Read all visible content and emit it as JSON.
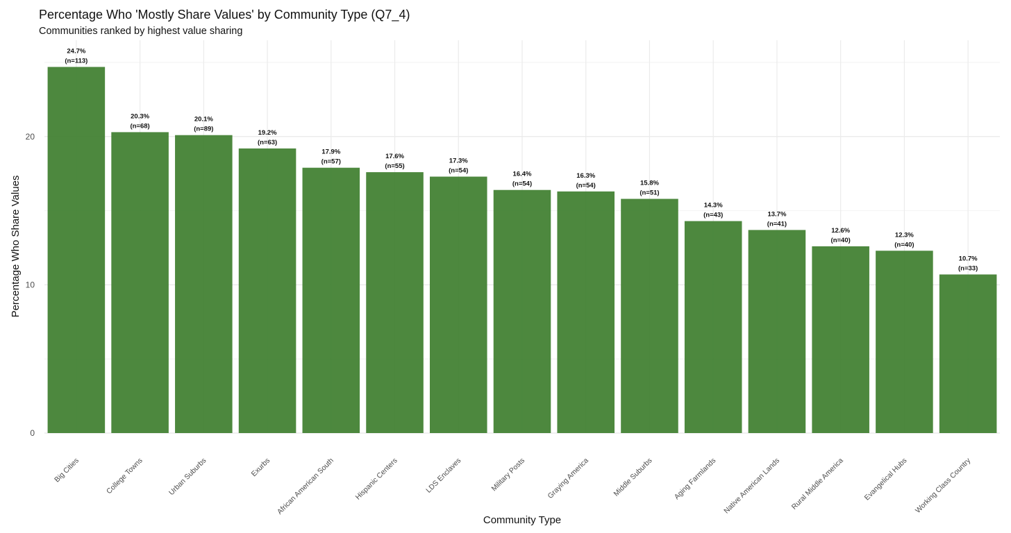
{
  "chart_data": {
    "type": "bar",
    "title": "Percentage Who 'Mostly Share Values' by Community Type (Q7_4)",
    "subtitle": "Communities ranked by highest value sharing",
    "xlabel": "Community Type",
    "ylabel": "Percentage Who Share Values",
    "ylim": [
      0,
      26.5
    ],
    "yticks": [
      0,
      10,
      20
    ],
    "yticks_labels": [
      "0",
      "10",
      "20"
    ],
    "grid": true,
    "bar_color": "#3f7f2f",
    "categories": [
      "Big Cities",
      "College Towns",
      "Urban Suburbs",
      "Exurbs",
      "African American South",
      "Hispanic Centers",
      "LDS Enclaves",
      "Military Posts",
      "Graying America",
      "Middle Suburbs",
      "Aging Farmlands",
      "Native American Lands",
      "Rural Middle America",
      "Evangelical Hubs",
      "Working Class Country"
    ],
    "values": [
      24.7,
      20.3,
      20.1,
      19.2,
      17.9,
      17.6,
      17.3,
      16.4,
      16.3,
      15.8,
      14.3,
      13.7,
      12.6,
      12.3,
      10.7
    ],
    "value_labels": [
      "24.7%",
      "20.3%",
      "20.1%",
      "19.2%",
      "17.9%",
      "17.6%",
      "17.3%",
      "16.4%",
      "16.3%",
      "15.8%",
      "14.3%",
      "13.7%",
      "12.6%",
      "12.3%",
      "10.7%"
    ],
    "n_labels": [
      "(n=113)",
      "(n=68)",
      "(n=89)",
      "(n=63)",
      "(n=57)",
      "(n=55)",
      "(n=54)",
      "(n=54)",
      "(n=54)",
      "(n=51)",
      "(n=43)",
      "(n=41)",
      "(n=40)",
      "(n=40)",
      "(n=33)"
    ]
  }
}
